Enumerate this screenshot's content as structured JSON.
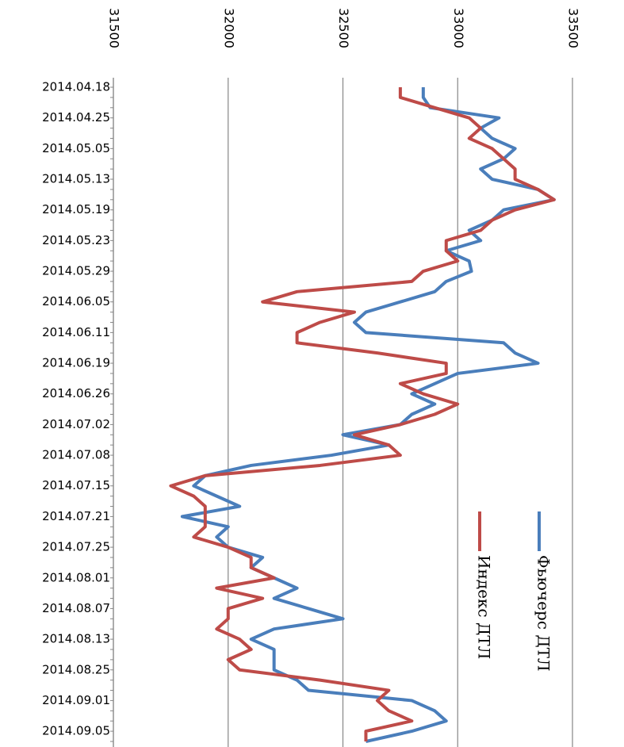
{
  "chart_data": {
    "type": "line",
    "orientation": "vertical-categories",
    "categories": [
      "2014.04.18",
      null,
      null,
      "2014.04.25",
      null,
      null,
      "2014.05.05",
      null,
      null,
      "2014.05.13",
      null,
      null,
      "2014.05.19",
      null,
      null,
      "2014.05.23",
      null,
      null,
      "2014.05.29",
      null,
      null,
      "2014.06.05",
      null,
      null,
      "2014.06.11",
      null,
      null,
      "2014.06.19",
      null,
      null,
      "2014.06.26",
      null,
      null,
      "2014.07.02",
      null,
      null,
      "2014.07.08",
      null,
      null,
      "2014.07.15",
      null,
      null,
      "2014.07.21",
      null,
      null,
      "2014.07.25",
      null,
      null,
      "2014.08.01",
      null,
      null,
      "2014.08.07",
      null,
      null,
      "2014.08.13",
      null,
      null,
      "2014.08.25",
      null,
      null,
      "2014.09.01",
      null,
      null,
      "2014.09.05",
      null
    ],
    "series": [
      {
        "name": "Фьючерс ДТЛ",
        "color": "#4a7ebb",
        "values": [
          32850,
          32850,
          32880,
          33180,
          33100,
          33150,
          33250,
          33200,
          33100,
          33150,
          33350,
          33420,
          33200,
          33150,
          33050,
          33100,
          32950,
          33050,
          33060,
          32950,
          32900,
          32750,
          32600,
          32550,
          32600,
          33200,
          33250,
          33350,
          33000,
          32900,
          32800,
          32900,
          32800,
          32750,
          32500,
          32700,
          32450,
          32100,
          31900,
          31850,
          31950,
          32050,
          31800,
          32000,
          31950,
          32000,
          32150,
          32100,
          32200,
          32300,
          32200,
          32350,
          32500,
          32200,
          32100,
          32200,
          32200,
          32200,
          32300,
          32350,
          32800,
          32900,
          32950,
          32800,
          32600
        ]
      },
      {
        "name": "Индекс ДТЛ",
        "color": "#be4b48",
        "values": [
          32750,
          32750,
          32900,
          33050,
          33100,
          33050,
          33150,
          33200,
          33250,
          33250,
          33350,
          33420,
          33250,
          33150,
          33100,
          32950,
          32950,
          33000,
          32850,
          32800,
          32300,
          32150,
          32550,
          32400,
          32300,
          32300,
          32650,
          32950,
          32950,
          32750,
          32850,
          33000,
          32900,
          32750,
          32550,
          32700,
          32750,
          32400,
          31900,
          31750,
          31850,
          31900,
          31900,
          31900,
          31850,
          32000,
          32100,
          32100,
          32200,
          31950,
          32150,
          32000,
          32000,
          31950,
          32050,
          32100,
          32000,
          32050,
          32400,
          32700,
          32650,
          32700,
          32800,
          32600,
          32600
        ]
      }
    ],
    "ylim": [
      31500,
      33500
    ],
    "yticks": [
      31500,
      32000,
      32500,
      33000,
      33500
    ],
    "grid": true
  }
}
